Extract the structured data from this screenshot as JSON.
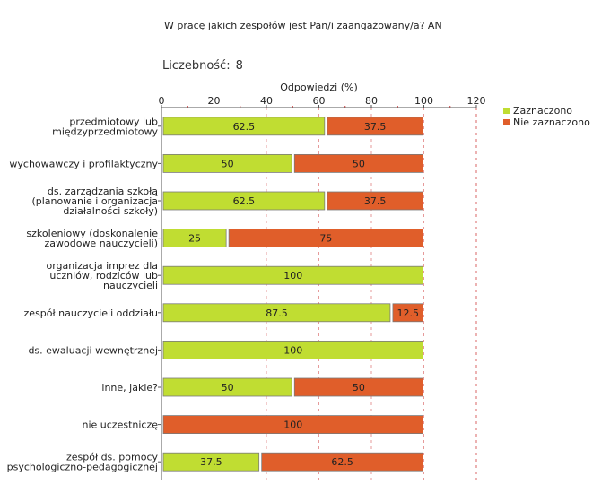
{
  "page": {
    "question": "W pracę jakich zespołów jest Pan/i zaangażowany/a? AN",
    "count_label": "Liczebność:",
    "count_value": "8"
  },
  "chart_data": {
    "type": "bar",
    "orientation": "horizontal",
    "stacked": true,
    "title": "W pracę jakich zespołów jest Pan/i zaangażowany/a? AN",
    "xlabel": "Odpowiedzi (%)",
    "ylabel": "",
    "xlim": [
      0,
      120
    ],
    "xticks": [
      "0",
      "20",
      "40",
      "60",
      "80",
      "100",
      "120"
    ],
    "grid": true,
    "legend_position": "top-right",
    "categories": [
      [
        "przedmiotowy lub",
        "międzyprzedmiotowy"
      ],
      [
        "wychowawczy i profilaktyczny"
      ],
      [
        "ds. zarządzania szkołą",
        "(planowanie i organizacja",
        "działalności szkoły)"
      ],
      [
        "szkoleniowy (doskonalenie",
        "zawodowe nauczycieli)"
      ],
      [
        "organizacja imprez dla",
        "uczniów, rodziców lub",
        "nauczycieli"
      ],
      [
        "zespół nauczycieli oddziału"
      ],
      [
        "ds. ewaluacji wewnętrznej"
      ],
      [
        "inne, jakie?"
      ],
      [
        "nie uczestniczę"
      ],
      [
        "zespół ds. pomocy",
        "psychologiczno-pedagogicznej"
      ]
    ],
    "series": [
      {
        "name": "Zaznaczono",
        "color": "#c0dd32",
        "values": [
          62.5,
          50,
          62.5,
          25,
          100,
          87.5,
          100,
          50,
          0,
          37.5
        ],
        "labels": [
          "62.5",
          "50",
          "62.5",
          "25",
          "100",
          "87.5",
          "100",
          "50",
          "",
          "37.5"
        ]
      },
      {
        "name": "Nie zaznaczono",
        "color": "#e05e2a",
        "values": [
          37.5,
          50,
          37.5,
          75,
          0,
          12.5,
          0,
          50,
          100,
          62.5
        ],
        "labels": [
          "37.5",
          "50",
          "37.5",
          "75",
          "",
          "12.5",
          "",
          "50",
          "100",
          "62.5"
        ]
      }
    ]
  }
}
